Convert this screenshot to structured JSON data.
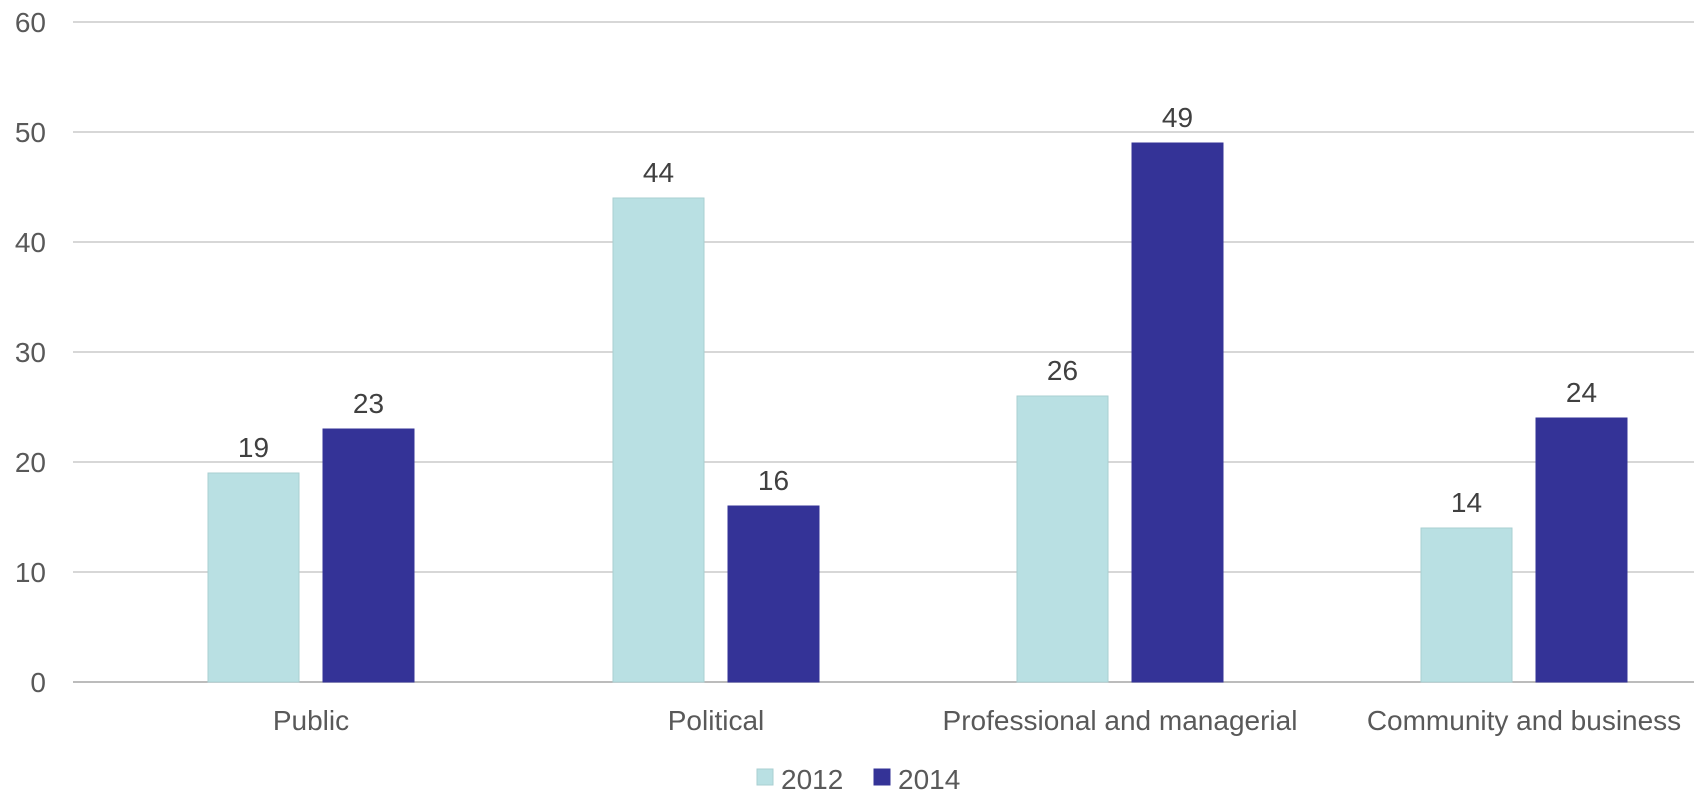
{
  "chart_data": {
    "type": "bar",
    "title": "",
    "xlabel": "",
    "ylabel": "",
    "categories": [
      "Public",
      "Political",
      "Professional and managerial",
      "Community and business"
    ],
    "series": [
      {
        "name": "2012",
        "values": [
          19,
          44,
          26,
          14
        ],
        "color": "#b9e0e3"
      },
      {
        "name": "2014",
        "values": [
          23,
          16,
          49,
          24
        ],
        "color": "#343397"
      }
    ],
    "ylim": [
      0,
      60
    ],
    "yticks": [
      0,
      10,
      20,
      30,
      40,
      50,
      60
    ],
    "grid": true,
    "legend": "bottom-center",
    "data_labels": true
  }
}
